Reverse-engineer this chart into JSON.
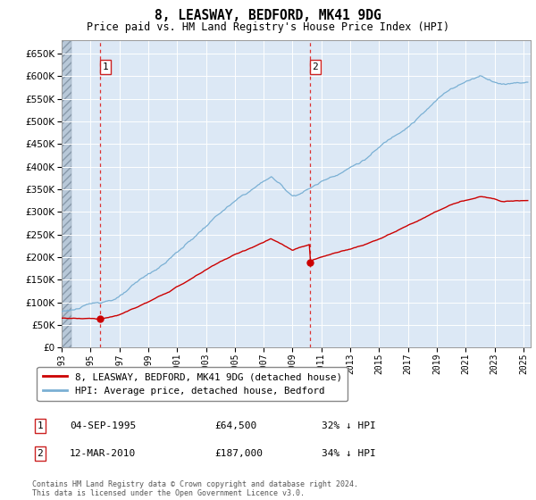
{
  "title": "8, LEASWAY, BEDFORD, MK41 9DG",
  "subtitle": "Price paid vs. HM Land Registry's House Price Index (HPI)",
  "ylim": [
    0,
    680000
  ],
  "yticks": [
    0,
    50000,
    100000,
    150000,
    200000,
    250000,
    300000,
    350000,
    400000,
    450000,
    500000,
    550000,
    600000,
    650000
  ],
  "xlim_start": 1993,
  "xlim_end": 2025.5,
  "sale_color": "#cc0000",
  "hpi_color": "#7ab0d4",
  "background_plot": "#dce8f5",
  "grid_color": "#ffffff",
  "marker1_x": 1995.67,
  "marker1_y": 64500,
  "marker2_x": 2010.21,
  "marker2_y": 187000,
  "marker1_label": "1",
  "marker2_label": "2",
  "legend_entry1": "8, LEASWAY, BEDFORD, MK41 9DG (detached house)",
  "legend_entry2": "HPI: Average price, detached house, Bedford",
  "note1_num": "1",
  "note1_date": "04-SEP-1995",
  "note1_price": "£64,500",
  "note1_hpi": "32% ↓ HPI",
  "note2_num": "2",
  "note2_date": "12-MAR-2010",
  "note2_price": "£187,000",
  "note2_hpi": "34% ↓ HPI",
  "copyright": "Contains HM Land Registry data © Crown copyright and database right 2024.\nThis data is licensed under the Open Government Licence v3.0."
}
